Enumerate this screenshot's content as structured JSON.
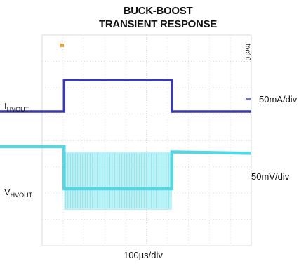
{
  "title_line1": "BUCK-BOOST",
  "title_line2": "TRANSIENT RESPONSE",
  "figure_code": "toc10",
  "trace_labels": {
    "current_main": "I",
    "current_sub": "HVOUT",
    "voltage_main": "V",
    "voltage_sub": "HVOUT"
  },
  "scale_labels": {
    "current": "50mA/div",
    "voltage": "50mV/div",
    "time": "100µs/div"
  },
  "colors": {
    "current_trace": "#3a3aa8",
    "voltage_trace": "#55d6e0",
    "voltage_ripple": "#a8ecf2",
    "marker": "#f0a030",
    "grid": "#dcdcdc"
  },
  "chart_data": {
    "type": "line",
    "x_divisions": 10,
    "y_divisions": 8,
    "x_scale": "100µs/div",
    "grid": true,
    "series": [
      {
        "name": "I HVOUT",
        "scale": "50mA/div",
        "x": [
          0,
          1.05,
          1.05,
          6.2,
          6.2,
          10
        ],
        "y": [
          0,
          0,
          1.2,
          1.2,
          0,
          0
        ]
      },
      {
        "name": "V HVOUT",
        "scale": "50mV/div",
        "x": [
          0,
          1.05,
          1.05,
          6.2,
          6.2,
          10
        ],
        "y": [
          0,
          0,
          -1.6,
          -1.6,
          -0.2,
          -0.25
        ],
        "ripple_band": {
          "x_start": 1.05,
          "x_end": 6.2,
          "y_high": -0.2,
          "y_low": -2.4
        }
      }
    ]
  }
}
